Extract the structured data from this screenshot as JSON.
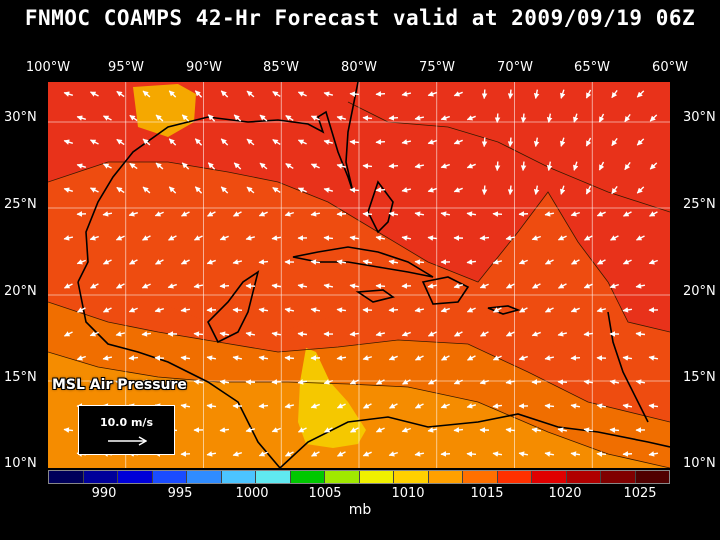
{
  "title": "FNMOC COAMPS 42-Hr Forecast valid at 2009/09/19 06Z",
  "lon_labels": [
    "100°W",
    "95°W",
    "90°W",
    "85°W",
    "80°W",
    "75°W",
    "70°W",
    "65°W",
    "60°W"
  ],
  "lat_labels": [
    "30°N",
    "25°N",
    "20°N",
    "15°N",
    "10°N"
  ],
  "field_label": "MSL Air Pressure",
  "reference_vector": "10.0 m/s",
  "colorbar": {
    "labels": [
      "990",
      "995",
      "1000",
      "1005",
      "1010",
      "1015",
      "1020",
      "1025"
    ],
    "units": "mb",
    "colors": [
      "#00005a",
      "#00009a",
      "#0000d8",
      "#1a4cff",
      "#2f8cff",
      "#4cc4ff",
      "#60e8f0",
      "#00c800",
      "#a0e800",
      "#f0f000",
      "#ffd000",
      "#ffa000",
      "#ff7000",
      "#ff3000",
      "#e00000",
      "#b00000",
      "#800000",
      "#500000"
    ]
  },
  "pressure_colors": {
    "p1010": "#f5c800",
    "p1011": "#f5a800",
    "p1012": "#f58c00",
    "p1013": "#f06e00",
    "p1014": "#ee4c10",
    "p1015": "#e8321a"
  }
}
